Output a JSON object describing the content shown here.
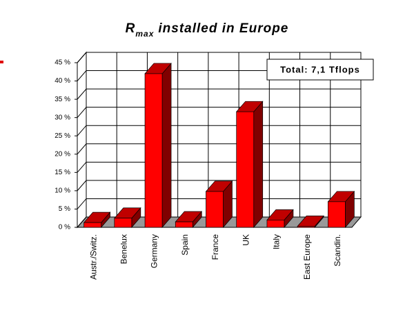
{
  "chart_data": {
    "type": "bar3d",
    "title": "R",
    "title_subscript": "max",
    "title_rest": "installed in Europe",
    "annotation": "Total: 7,1 Tflops",
    "categories": [
      "Austr./Switz.",
      "Benelux",
      "Germany",
      "Spain",
      "France",
      "UK",
      "Italy",
      "East Europe",
      "Scandin."
    ],
    "values": [
      1.3,
      2.5,
      42,
      1.5,
      9.8,
      31.6,
      2,
      0.3,
      7
    ],
    "color": "#ff0000",
    "ylim": [
      0,
      45
    ],
    "yticks": [
      {
        "value": 0,
        "label": "0 %"
      },
      {
        "value": 5,
        "label": "5 %"
      },
      {
        "value": 10,
        "label": "10 %"
      },
      {
        "value": 15,
        "label": "15 %"
      },
      {
        "value": 20,
        "label": "20 %"
      },
      {
        "value": 25,
        "label": "25 %"
      },
      {
        "value": 30,
        "label": "30 %"
      },
      {
        "value": 35,
        "label": "35 %"
      },
      {
        "value": 40,
        "label": "40 %"
      },
      {
        "value": 45,
        "label": "45 %"
      }
    ],
    "grid": true
  }
}
